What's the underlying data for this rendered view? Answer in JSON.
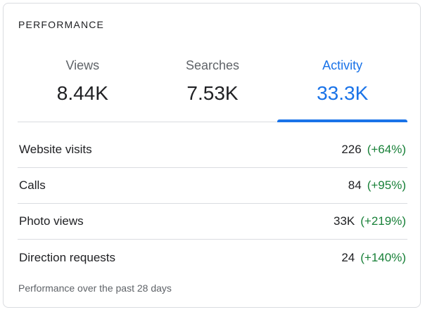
{
  "card": {
    "title": "PERFORMANCE"
  },
  "tabs": [
    {
      "label": "Views",
      "value": "8.44K",
      "active": false
    },
    {
      "label": "Searches",
      "value": "7.53K",
      "active": false
    },
    {
      "label": "Activity",
      "value": "33.3K",
      "active": true
    }
  ],
  "metrics": [
    {
      "label": "Website visits",
      "value": "226",
      "change": "(+64%)"
    },
    {
      "label": "Calls",
      "value": "84",
      "change": "(+95%)"
    },
    {
      "label": "Photo views",
      "value": "33K",
      "change": "(+219%)"
    },
    {
      "label": "Direction requests",
      "value": "24",
      "change": "(+140%)"
    }
  ],
  "footer": {
    "note": "Performance over the past 28 days"
  },
  "colors": {
    "accent": "#1a73e8",
    "positive_change": "#188038",
    "text_primary": "#202124",
    "text_secondary": "#5f6368",
    "divider": "#dadce0"
  }
}
